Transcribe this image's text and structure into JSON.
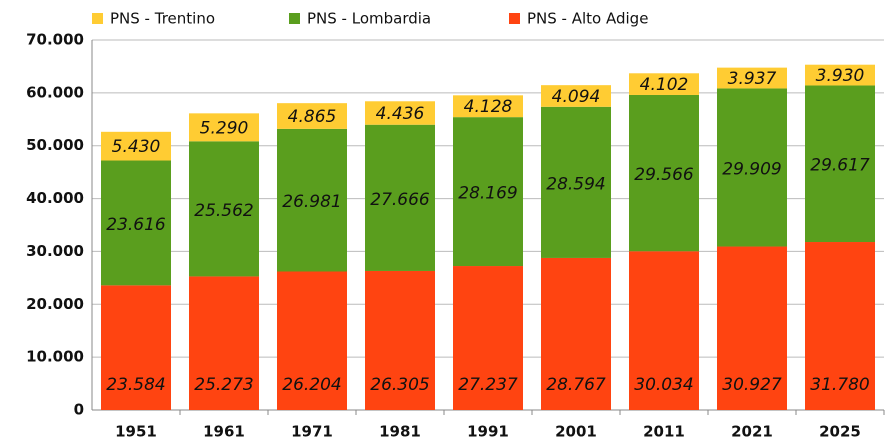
{
  "chart_data": {
    "type": "stacked_bar",
    "categories": [
      "1951",
      "1961",
      "1971",
      "1981",
      "1991",
      "2001",
      "2011",
      "2021",
      "2025"
    ],
    "series": [
      {
        "name": "PNS - Trentino",
        "color": "#ffcc33",
        "values": [
          5430,
          5290,
          4865,
          4436,
          4128,
          4094,
          4102,
          3937,
          3930
        ],
        "value_labels": [
          "5.430",
          "5.290",
          "4.865",
          "4.436",
          "4.128",
          "4.094",
          "4.102",
          "3.937",
          "3.930"
        ]
      },
      {
        "name": "PNS - Lombardia",
        "color": "#5a9e1e",
        "values": [
          23616,
          25562,
          26981,
          27666,
          28169,
          28594,
          29566,
          29909,
          29617
        ],
        "value_labels": [
          "23.616",
          "25.562",
          "26.981",
          "27.666",
          "28.169",
          "28.594",
          "29.566",
          "29.909",
          "29.617"
        ]
      },
      {
        "name": "PNS - Alto Adige",
        "color": "#ff4411",
        "values": [
          23584,
          25273,
          26204,
          26305,
          27237,
          28767,
          30034,
          30927,
          31780
        ],
        "value_labels": [
          "23.584",
          "25.273",
          "26.204",
          "26.305",
          "27.237",
          "28.767",
          "30.034",
          "30.927",
          "31.780"
        ]
      }
    ],
    "ylim": [
      0,
      70000
    ],
    "yticks": [
      0,
      {
        "value": 10000,
        "label": "10.000"
      },
      {
        "value": 20000,
        "label": "20.000"
      },
      {
        "value": 30000,
        "label": "30.000"
      },
      {
        "value": 40000,
        "label": "40.000"
      },
      {
        "value": 50000,
        "label": "50.000"
      },
      {
        "value": 60000,
        "label": "60.000"
      },
      {
        "value": 70000,
        "label": "70.000"
      }
    ],
    "grid": true,
    "legend": "top"
  }
}
